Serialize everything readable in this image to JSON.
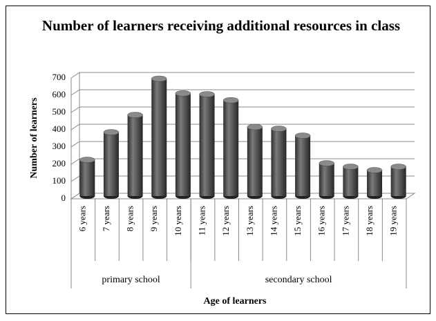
{
  "chart_data": {
    "type": "bar",
    "title": "Number of learners receiving additional resources in class",
    "y_label": "Number of learners",
    "x_label": "Age of learners",
    "categories": [
      "6 years",
      "7 years",
      "8 years",
      "9 years",
      "10 years",
      "11 years",
      "12 years",
      "13 years",
      "14 years",
      "15 years",
      "16 years",
      "17 years",
      "18 years",
      "19 years"
    ],
    "values": [
      210,
      370,
      470,
      680,
      595,
      590,
      555,
      400,
      390,
      350,
      190,
      170,
      150,
      170
    ],
    "groups": [
      {
        "label": "primary school",
        "span": 5
      },
      {
        "label": "secondary school",
        "span": 9
      }
    ],
    "color": "#555555",
    "ylim": [
      0,
      700
    ],
    "yticks": [
      0,
      100,
      200,
      300,
      400,
      500,
      600,
      700
    ],
    "grid": true
  }
}
